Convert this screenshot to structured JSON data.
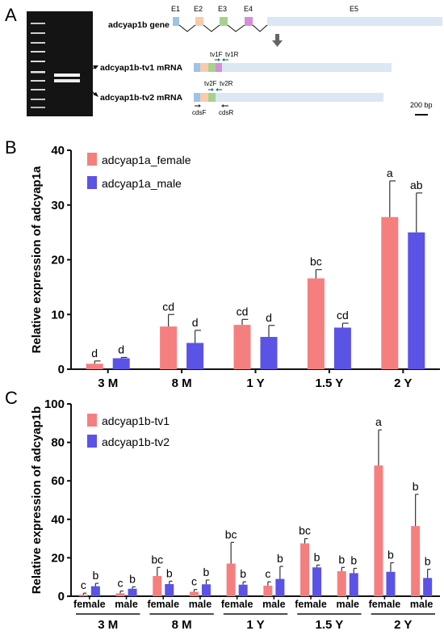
{
  "panels": {
    "a": {
      "letter": "A"
    },
    "b": {
      "letter": "B"
    },
    "c": {
      "letter": "C"
    }
  },
  "colors": {
    "female": "#f57f7f",
    "male": "#5b52e6",
    "exon_e1": "#9dc3e6",
    "exon_e2": "#f8cbad",
    "exon_e3": "#a9d18e",
    "exon_e4": "#d68ed8",
    "exon_e5": "#dbe7f3",
    "gel_bg": "#141414",
    "arrow_green": "#1a7a6a",
    "arrow_dark": "#333333"
  },
  "gene_diagram": {
    "gene_label": "adcyap1b gene",
    "exons": [
      "E1",
      "E2",
      "E3",
      "E4",
      "E5"
    ],
    "tv1_label": "adcyap1b-tv1 mRNA",
    "tv2_label": "adcyap1b-tv2 mRNA",
    "tv1_primers": [
      "tv1F",
      "tv1R"
    ],
    "tv2_primers": [
      "tv2F",
      "tv2R"
    ],
    "cds_primers": [
      "cdsF",
      "cdsR"
    ],
    "scale_label": "200 bp"
  },
  "chart_data": [
    {
      "type": "bar",
      "title": "",
      "ylabel": "Relative expression of adcyap1a",
      "ylim": [
        0,
        40
      ],
      "yticks": [
        "0",
        "10",
        "20",
        "30",
        "40"
      ],
      "categories": [
        "3 M",
        "8 M",
        "1 Y",
        "1.5 Y",
        "2 Y"
      ],
      "legend": "top-left",
      "series": [
        {
          "name": "adcyap1a_female",
          "values": [
            1.0,
            7.8,
            8.1,
            16.6,
            27.8
          ],
          "errors": [
            0.5,
            2.2,
            1.0,
            1.6,
            6.6
          ],
          "labels": [
            "d",
            "cd",
            "cd",
            "bc",
            "a"
          ]
        },
        {
          "name": "adcyap1a_male",
          "values": [
            2.0,
            4.8,
            5.9,
            7.6,
            25.0
          ],
          "errors": [
            0.15,
            2.3,
            2.1,
            0.8,
            7.2
          ],
          "labels": [
            "d",
            "d",
            "d",
            "cd",
            "ab"
          ]
        }
      ]
    },
    {
      "type": "bar",
      "title": "",
      "ylabel": "Relative expression of adcyap1b",
      "ylim": [
        0,
        100
      ],
      "yticks": [
        "0",
        "20",
        "40",
        "60",
        "80",
        "100"
      ],
      "groups": [
        "3 M",
        "8 M",
        "1 Y",
        "1.5 Y",
        "2 Y"
      ],
      "sexes": [
        "female",
        "male"
      ],
      "legend": "top-left",
      "series": [
        {
          "name": "adcyap1b-tv1",
          "values": [
            0.8,
            1.5,
            10.5,
            2.3,
            17.0,
            5.5,
            27.5,
            13.0,
            68.0,
            36.5
          ],
          "errors": [
            0.8,
            1.2,
            4.5,
            1.2,
            11.0,
            2.0,
            2.5,
            2.0,
            18.5,
            16.5
          ],
          "labels": [
            "c",
            "c",
            "bc",
            "c",
            "bc",
            "c",
            "bc",
            "b",
            "a",
            "b"
          ]
        },
        {
          "name": "adcyap1b-tv2",
          "values": [
            5.2,
            3.9,
            6.3,
            6.2,
            6.0,
            9.0,
            15.0,
            12.0,
            12.7,
            9.5
          ],
          "errors": [
            1.5,
            1.0,
            1.5,
            2.2,
            1.5,
            6.5,
            1.2,
            2.5,
            4.7,
            4.5
          ],
          "labels": [
            "b",
            "b",
            "b",
            "b",
            "b",
            "b",
            "b",
            "b",
            "b",
            "b"
          ]
        }
      ]
    }
  ]
}
